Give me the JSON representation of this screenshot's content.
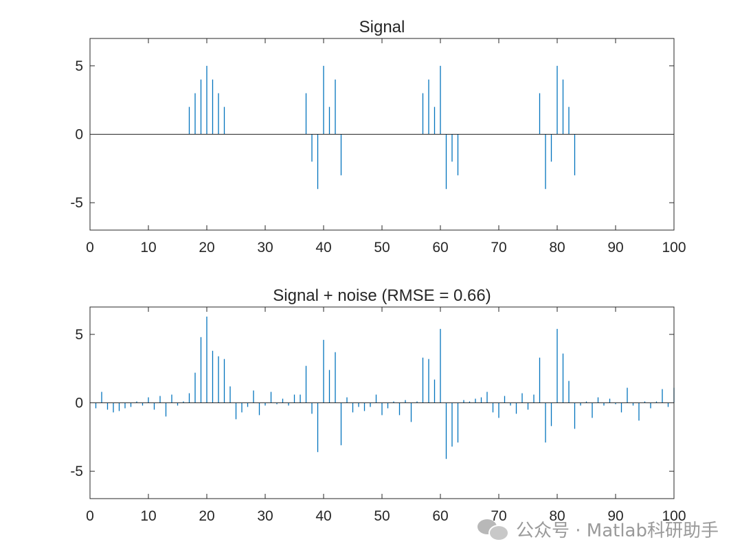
{
  "chart_data": [
    {
      "type": "stem",
      "title": "Signal",
      "xlabel": "",
      "ylabel": "",
      "xlim": [
        0,
        100
      ],
      "ylim": [
        -7,
        7
      ],
      "xticks": [
        0,
        10,
        20,
        30,
        40,
        50,
        60,
        70,
        80,
        90,
        100
      ],
      "yticks": [
        -5,
        0,
        5
      ],
      "color": "#0072BD",
      "x": [
        17,
        18,
        19,
        20,
        21,
        22,
        23,
        37,
        38,
        39,
        40,
        41,
        42,
        43,
        57,
        58,
        59,
        60,
        61,
        62,
        63,
        77,
        78,
        79,
        80,
        81,
        82,
        83
      ],
      "y": [
        2,
        3,
        4,
        5,
        4,
        3,
        2,
        3,
        -2,
        -4,
        5,
        2,
        4,
        -3,
        3,
        4,
        2,
        5,
        -4,
        -2,
        -3,
        3,
        -4,
        -2,
        5,
        4,
        2,
        -3
      ]
    },
    {
      "type": "stem",
      "title": "Signal + noise (RMSE = 0.66)",
      "xlabel": "",
      "ylabel": "",
      "xlim": [
        0,
        100
      ],
      "ylim": [
        -7,
        7
      ],
      "xticks": [
        0,
        10,
        20,
        30,
        40,
        50,
        60,
        70,
        80,
        90,
        100
      ],
      "yticks": [
        -5,
        0,
        5
      ],
      "color": "#0072BD",
      "x": [
        1,
        2,
        3,
        4,
        5,
        6,
        7,
        8,
        9,
        10,
        11,
        12,
        13,
        14,
        15,
        16,
        17,
        18,
        19,
        20,
        21,
        22,
        23,
        24,
        25,
        26,
        27,
        28,
        29,
        30,
        31,
        32,
        33,
        34,
        35,
        36,
        37,
        38,
        39,
        40,
        41,
        42,
        43,
        44,
        45,
        46,
        47,
        48,
        49,
        50,
        51,
        52,
        53,
        54,
        55,
        56,
        57,
        58,
        59,
        60,
        61,
        62,
        63,
        64,
        65,
        66,
        67,
        68,
        69,
        70,
        71,
        72,
        73,
        74,
        75,
        76,
        77,
        78,
        79,
        80,
        81,
        82,
        83,
        84,
        85,
        86,
        87,
        88,
        89,
        90,
        91,
        92,
        93,
        94,
        95,
        96,
        97,
        98,
        99,
        100
      ],
      "y": [
        -0.4,
        0.8,
        -0.5,
        -0.7,
        -0.6,
        -0.4,
        -0.3,
        0.1,
        -0.2,
        0.4,
        -0.5,
        0.5,
        -1.0,
        0.6,
        -0.2,
        0.1,
        0.7,
        2.2,
        4.8,
        6.3,
        3.8,
        3.4,
        3.2,
        1.2,
        -1.2,
        -0.7,
        -0.3,
        0.9,
        -0.9,
        -0.2,
        0.8,
        -0.1,
        0.3,
        -0.2,
        0.6,
        0.6,
        2.7,
        -0.8,
        -3.6,
        4.6,
        2.4,
        3.7,
        -3.1,
        0.4,
        -0.7,
        -0.3,
        -0.6,
        -0.3,
        0.6,
        -0.9,
        -0.4,
        0.1,
        -0.9,
        0.2,
        -1.4,
        0.1,
        3.3,
        3.2,
        1.7,
        5.4,
        -4.1,
        -3.2,
        -2.9,
        0.2,
        0.1,
        0.3,
        0.4,
        0.8,
        -0.7,
        -1.1,
        0.5,
        -0.2,
        -0.8,
        0.7,
        -0.5,
        0.6,
        3.3,
        -2.9,
        -1.7,
        5.4,
        3.6,
        1.6,
        -1.9,
        -0.2,
        0.1,
        -1.1,
        0.4,
        -0.2,
        0.3,
        -0.1,
        -0.7,
        1.1,
        -0.2,
        -1.3,
        0.1,
        -0.4,
        0.1,
        1.0,
        -0.3,
        1.1
      ]
    }
  ],
  "watermark": {
    "icon": "wechat-icon",
    "text": "公众号 · Matlab科研助手"
  }
}
